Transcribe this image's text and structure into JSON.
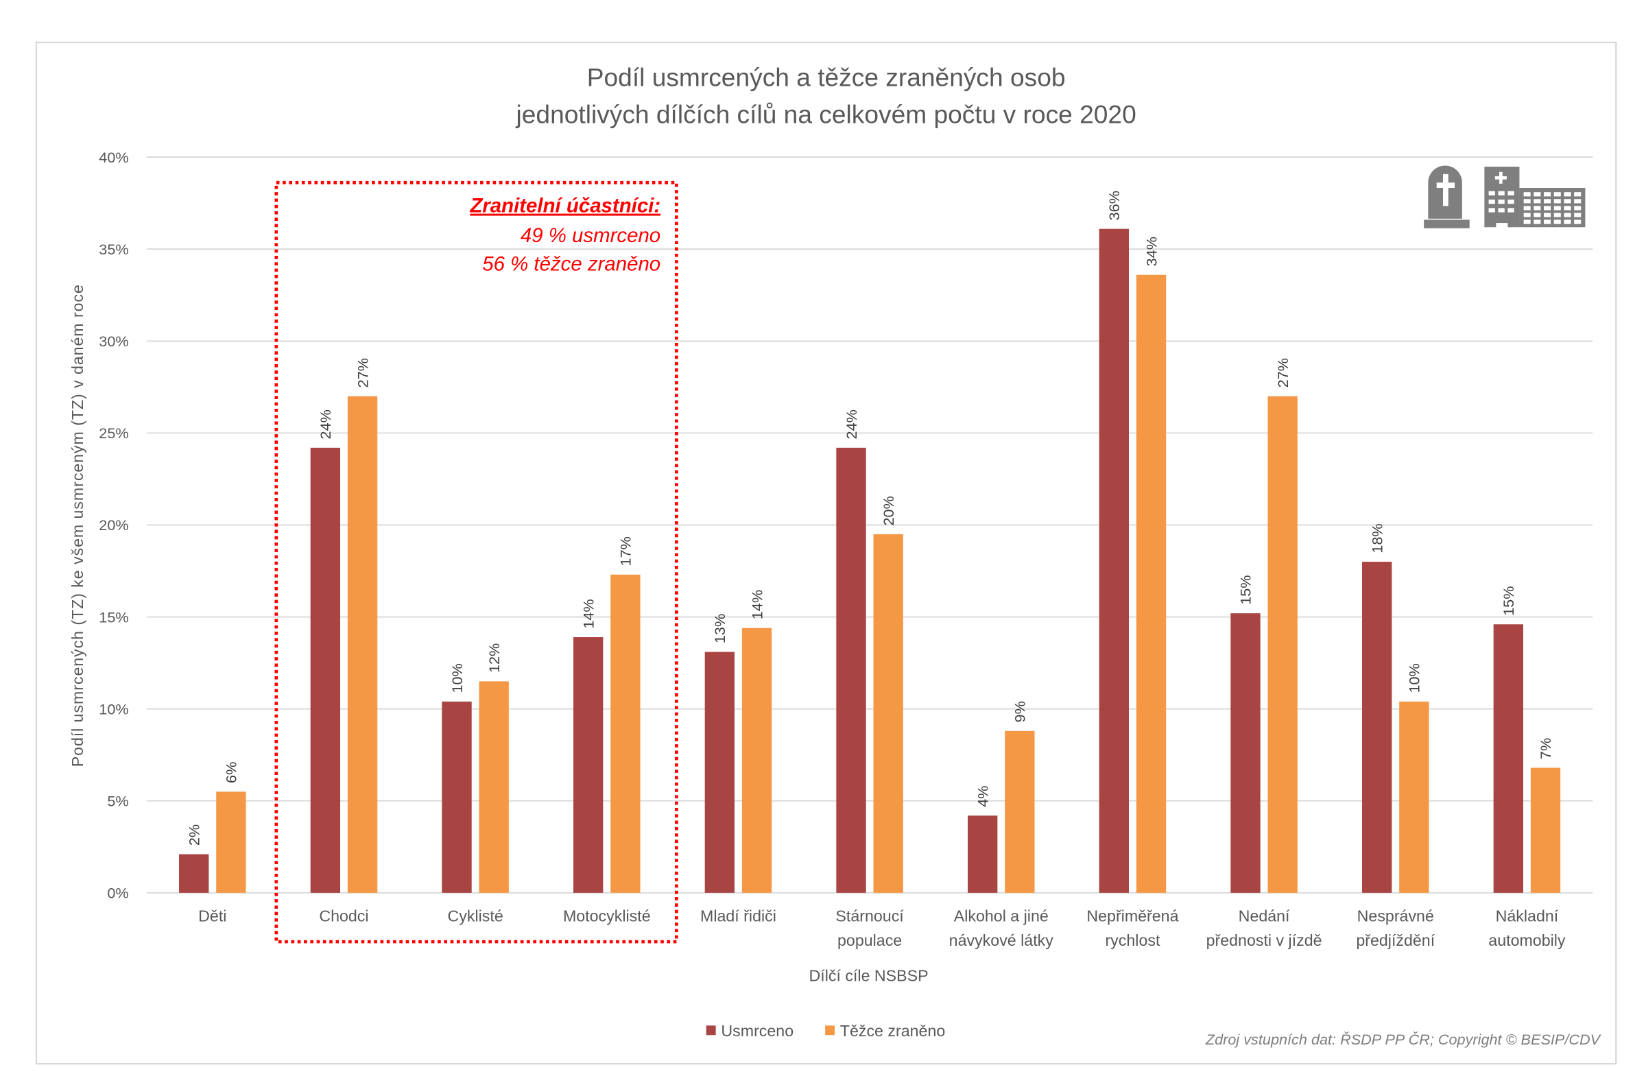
{
  "chart_data": {
    "type": "bar",
    "title_line1": "Podíl usmrcených a těžce zraněných osob",
    "title_line2": "jednotlivých dílčích cílů na celkovém počtu v roce 2020",
    "xlabel": "Dílčí cíle NSBSP",
    "ylabel": "Podíl usmrcených (TZ) ke všem usmrceným (TZ) v daném roce",
    "ylim": [
      0,
      40
    ],
    "yticks": [
      "0%",
      "5%",
      "10%",
      "15%",
      "20%",
      "25%",
      "30%",
      "35%",
      "40%"
    ],
    "grid": true,
    "legend_position": "bottom",
    "categories": [
      [
        "Děti"
      ],
      [
        "Chodci"
      ],
      [
        "Cyklisté"
      ],
      [
        "Motocyklisté"
      ],
      [
        "Mladí řidiči"
      ],
      [
        "Stárnoucí",
        "populace"
      ],
      [
        "Alkohol a jiné",
        "návykové látky"
      ],
      [
        "Nepřiměřená",
        "rychlost"
      ],
      [
        "Nedání",
        "přednosti v jízdě"
      ],
      [
        "Nesprávné",
        "předjíždění"
      ],
      [
        "Nákladní",
        "automobily"
      ]
    ],
    "series": [
      {
        "name": "Usmrceno",
        "color": "#A84543",
        "values": [
          2.1,
          24.2,
          10.4,
          13.9,
          13.1,
          24.2,
          4.2,
          36.1,
          15.2,
          18.0,
          14.6
        ],
        "labels": [
          "2%",
          "24%",
          "10%",
          "14%",
          "13%",
          "24%",
          "4%",
          "36%",
          "15%",
          "18%",
          "15%"
        ]
      },
      {
        "name": "Těžce zraněno",
        "color": "#F59846",
        "values": [
          5.5,
          27.0,
          11.5,
          17.3,
          14.4,
          19.5,
          8.8,
          33.6,
          27.0,
          10.4,
          6.8
        ],
        "labels": [
          "6%",
          "27%",
          "12%",
          "17%",
          "14%",
          "20%",
          "9%",
          "34%",
          "27%",
          "10%",
          "7%"
        ]
      }
    ],
    "annotation": {
      "heading": "Zranitelní účastníci:",
      "line1": "49 % usmrceno",
      "line2": "56 % těžce zraněno",
      "color": "#FF0000",
      "covers_categories": [
        "Chodci",
        "Cyklisté",
        "Motocyklisté"
      ]
    },
    "icons": [
      "tombstone-icon",
      "hospital-icon"
    ],
    "source": "Zdroj vstupních dat: ŘSDP PP ČR; Copyright © BESIP/CDV"
  }
}
